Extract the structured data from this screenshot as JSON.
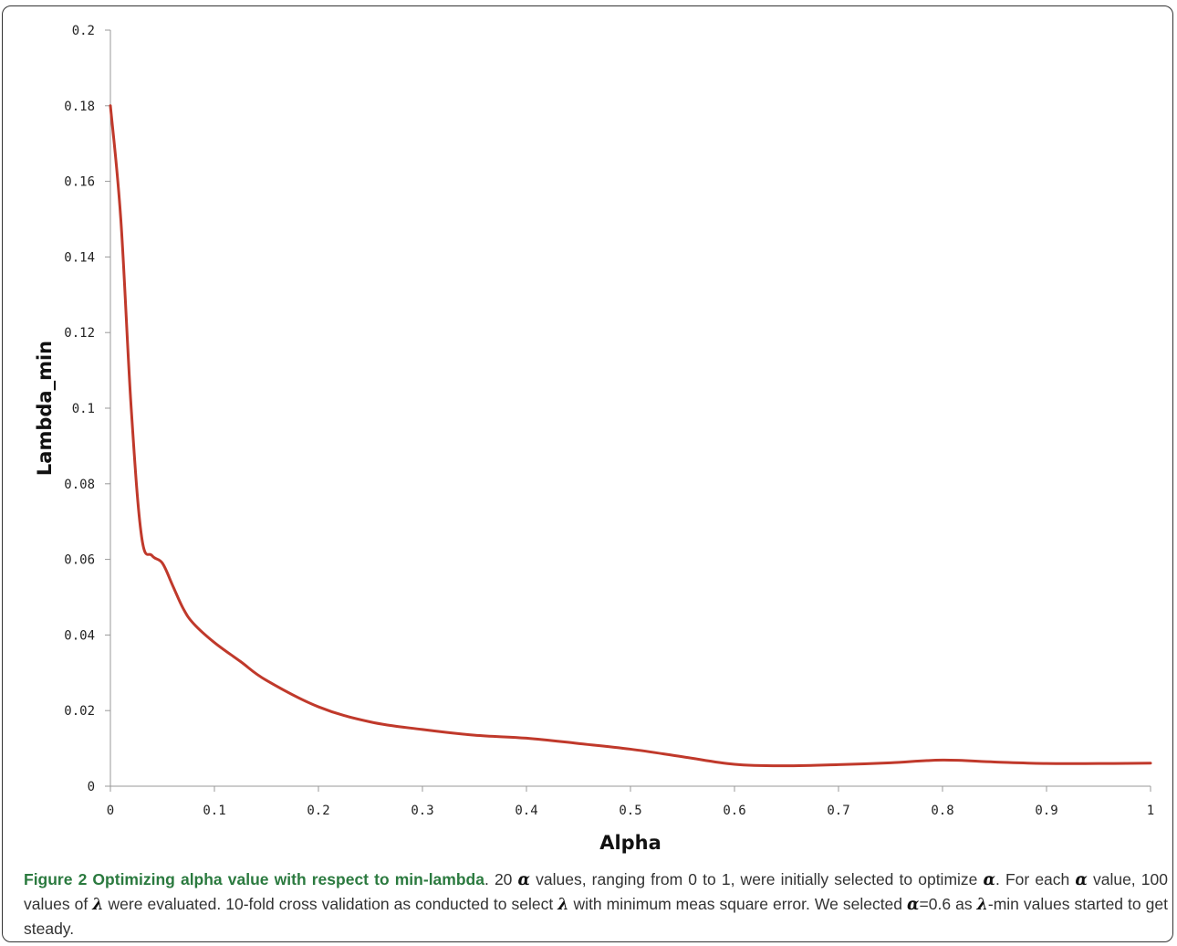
{
  "chart_data": {
    "type": "line",
    "xlabel": "Alpha",
    "ylabel": "Lambda_min",
    "xlim": [
      0,
      1
    ],
    "ylim": [
      0,
      0.2
    ],
    "x_ticks": [
      "0",
      "0.1",
      "0.2",
      "0.3",
      "0.4",
      "0.5",
      "0.6",
      "0.7",
      "0.8",
      "0.9",
      "1"
    ],
    "y_ticks": [
      "0",
      "0.02",
      "0.04",
      "0.06",
      "0.08",
      "0.1",
      "0.12",
      "0.14",
      "0.16",
      "0.18",
      "0.2"
    ],
    "grid": false,
    "series": [
      {
        "color": "#c0392b",
        "x": [
          0,
          0.01,
          0.02,
          0.03,
          0.04,
          0.05,
          0.06,
          0.07,
          0.08,
          0.1,
          0.125,
          0.15,
          0.2,
          0.25,
          0.3,
          0.35,
          0.4,
          0.45,
          0.5,
          0.55,
          0.6,
          0.65,
          0.7,
          0.75,
          0.8,
          0.85,
          0.9,
          0.95,
          1.0
        ],
        "y": [
          0.18,
          0.15,
          0.1,
          0.066,
          0.061,
          0.059,
          0.053,
          0.047,
          0.043,
          0.038,
          0.033,
          0.028,
          0.021,
          0.017,
          0.015,
          0.0135,
          0.0127,
          0.0113,
          0.0098,
          0.0078,
          0.0058,
          0.0054,
          0.0057,
          0.0062,
          0.0069,
          0.0064,
          0.006,
          0.006,
          0.0061
        ]
      }
    ]
  },
  "caption": {
    "label": "Figure 2 Optimizing alpha value with respect to min-lambda",
    "sym_alpha": "α",
    "sym_lambda": "λ",
    "seg1": ". 20 ",
    "seg2": " values, ranging from 0 to 1, were initially selected to optimize ",
    "seg3": ". For each ",
    "seg4": " value, 100 values of ",
    "seg5": " were evaluated. 10-fold cross validation as conducted to select ",
    "seg6": " with minimum meas square error. We selected ",
    "seg7": "=0.6 as ",
    "seg8": "-min values started to get steady."
  }
}
